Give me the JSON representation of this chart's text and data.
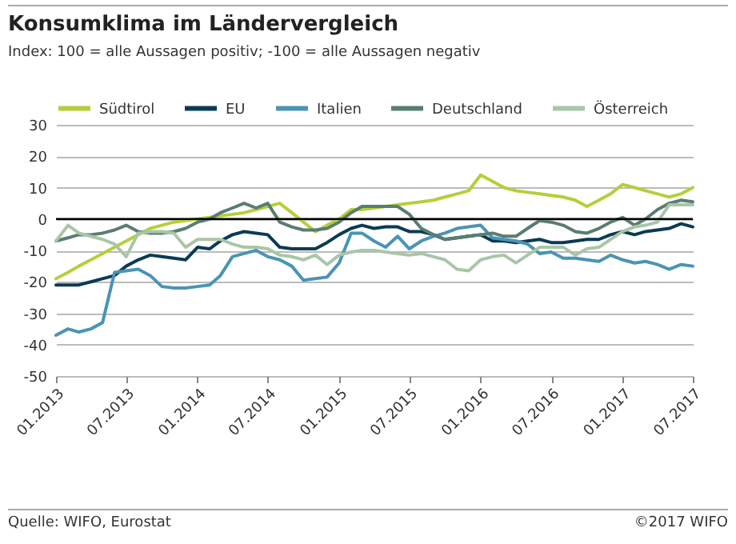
{
  "chart_data": {
    "type": "line",
    "title": "Konsumklima im Ländervergleich",
    "subtitle": "Index: 100 = alle Aussagen positiv; -100 =  alle Aussagen negativ",
    "annotations": [
      "Quelle: WIFO, Eurostat",
      "©2017 WIFO"
    ],
    "x": [
      "2013-01",
      "2013-02",
      "2013-03",
      "2013-04",
      "2013-05",
      "2013-06",
      "2013-07",
      "2013-08",
      "2013-09",
      "2013-10",
      "2013-11",
      "2013-12",
      "2014-01",
      "2014-02",
      "2014-03",
      "2014-04",
      "2014-05",
      "2014-06",
      "2014-07",
      "2014-08",
      "2014-09",
      "2014-10",
      "2014-11",
      "2014-12",
      "2015-01",
      "2015-02",
      "2015-03",
      "2015-04",
      "2015-05",
      "2015-06",
      "2015-07",
      "2015-08",
      "2015-09",
      "2015-10",
      "2015-11",
      "2015-12",
      "2016-01",
      "2016-02",
      "2016-03",
      "2016-04",
      "2016-05",
      "2016-06",
      "2016-07",
      "2016-08",
      "2016-09",
      "2016-10",
      "2016-11",
      "2016-12",
      "2017-01",
      "2017-02",
      "2017-03",
      "2017-04",
      "2017-05",
      "2017-06",
      "2017-07"
    ],
    "series": [
      {
        "name": "Südtirol",
        "color": "#b5cf3a",
        "values": [
          -19,
          -17,
          -15,
          -13,
          -11,
          -9,
          -7,
          -5,
          -3,
          -2,
          -1,
          -0.5,
          0,
          0.5,
          1,
          1.5,
          2,
          3,
          4,
          5,
          2,
          -1,
          -4,
          -2,
          0,
          3,
          3,
          3.5,
          4,
          4.5,
          5,
          5.5,
          6,
          7,
          8,
          9,
          14,
          12,
          10,
          9,
          8.5,
          8,
          7.5,
          7,
          6,
          4,
          6,
          8,
          11,
          10,
          9,
          8,
          7,
          8,
          10
        ]
      },
      {
        "name": "EU",
        "color": "#0a3b55",
        "values": [
          -21,
          -21,
          -21,
          -20,
          -19,
          -18,
          -15,
          -13,
          -11.5,
          -12,
          -12.5,
          -13,
          -9,
          -9.5,
          -7,
          -5,
          -4,
          -4.5,
          -5,
          -9,
          -9.5,
          -9.5,
          -9.5,
          -7.5,
          -5,
          -3,
          -2,
          -3,
          -2.5,
          -2.5,
          -4,
          -4,
          -5,
          -6.5,
          -6,
          -5.5,
          -5,
          -7,
          -7,
          -7.5,
          -7,
          -6.5,
          -7.5,
          -7.5,
          -7,
          -6.5,
          -6.5,
          -5,
          -4,
          -5,
          -4,
          -3.5,
          -3,
          -1.5,
          -2.5
        ]
      },
      {
        "name": "Italien",
        "color": "#4a94b4",
        "values": [
          -37,
          -35,
          -36,
          -35,
          -33,
          -17,
          -16.5,
          -16,
          -18,
          -21.5,
          -22,
          -22,
          -21.5,
          -21,
          -18,
          -12,
          -11,
          -10,
          -12,
          -13,
          -15,
          -19.5,
          -19,
          -18.5,
          -14,
          -4.5,
          -4.5,
          -7,
          -9,
          -5.5,
          -9.5,
          -7,
          -5.5,
          -4.5,
          -3,
          -2.5,
          -2,
          -6,
          -6.5,
          -7,
          -8,
          -11,
          -10.5,
          -12.5,
          -12.5,
          -13,
          -13.5,
          -11.5,
          -13,
          -14,
          -13.5,
          -14.5,
          -16,
          -14.5,
          -15
        ]
      },
      {
        "name": "Deutschland",
        "color": "#5a7d72",
        "values": [
          -7,
          -6,
          -5,
          -5,
          -4.5,
          -3.5,
          -2,
          -4,
          -4.5,
          -4.5,
          -4,
          -3,
          -1,
          0,
          2,
          3.5,
          5,
          3.5,
          5,
          -1,
          -2.5,
          -3.5,
          -3.5,
          -3,
          -1,
          2,
          4,
          4,
          4,
          4,
          1.5,
          -3,
          -5,
          -6.5,
          -6,
          -5.5,
          -5,
          -4.5,
          -5.5,
          -5.5,
          -3,
          -0.5,
          -1,
          -2,
          -4,
          -4.5,
          -3,
          -1,
          0.5,
          -2,
          0,
          3,
          5,
          6,
          5.5
        ]
      },
      {
        "name": "Österreich",
        "color": "#a9c6a8",
        "values": [
          -7,
          -2,
          -4.5,
          -5.5,
          -6.5,
          -8,
          -12,
          -4.5,
          -4,
          -4,
          -4.5,
          -9,
          -6.5,
          -6.5,
          -6.5,
          -8,
          -9,
          -9,
          -9.5,
          -11.5,
          -12,
          -13,
          -11.5,
          -14.5,
          -11.5,
          -10.5,
          -10,
          -10,
          -10.5,
          -11,
          -11.5,
          -11,
          -12,
          -13,
          -16,
          -16.5,
          -13,
          -12,
          -11.5,
          -14,
          -11.5,
          -9,
          -9,
          -9,
          -11.5,
          -9.5,
          -9,
          -6.5,
          -4,
          -2.5,
          -2,
          -1,
          4.5,
          4.5,
          4.5
        ]
      }
    ],
    "xlim": [
      "2013-01",
      "2017-07"
    ],
    "xticks": [
      {
        "value": "2013-01",
        "label": "01.2013"
      },
      {
        "value": "2013-07",
        "label": "07.2013"
      },
      {
        "value": "2014-01",
        "label": "01.2014"
      },
      {
        "value": "2014-07",
        "label": "07.2014"
      },
      {
        "value": "2015-01",
        "label": "01.2015"
      },
      {
        "value": "2015-07",
        "label": "07.2015"
      },
      {
        "value": "2016-01",
        "label": "01.2016"
      },
      {
        "value": "2016-07",
        "label": "07.2016"
      },
      {
        "value": "2017-01",
        "label": "01.2017"
      },
      {
        "value": "2017-07",
        "label": "07.2017"
      }
    ],
    "ylim": [
      -50,
      30
    ],
    "yticks": [
      -50,
      -40,
      -30,
      -20,
      -10,
      0,
      10,
      20,
      30
    ],
    "ref_lines": [
      {
        "axis": "y",
        "value": 0,
        "color": "#000000"
      }
    ],
    "grid": "y",
    "legend": "top",
    "marker": "none",
    "line_style": "solid"
  }
}
